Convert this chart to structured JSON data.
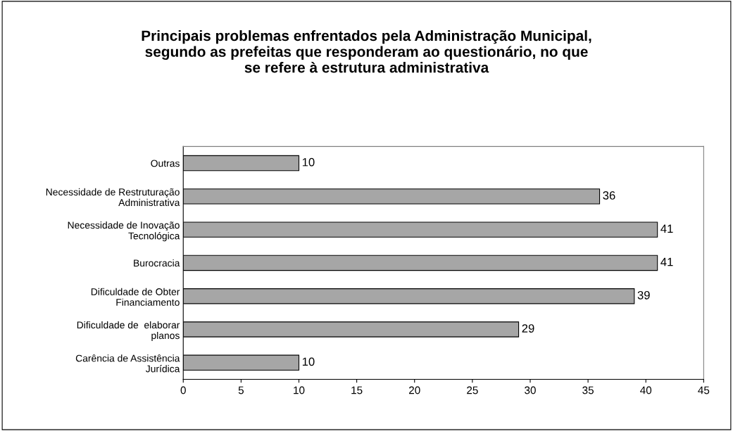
{
  "chart_data": {
    "type": "bar",
    "orientation": "horizontal",
    "title": "Principais problemas enfrentados pela Administração Municipal,\nsegundo as prefeitas que responderam ao questionário, no que\nse refere à estrutura administrativa",
    "categories": [
      "Outras",
      "Necessidade de Restruturação\nAdministrativa",
      "Necessidade de Inovação\nTecnológica",
      "Burocracia",
      "Dificuldade de Obter\nFinanciamento",
      "Dificuldade de  elaborar\nplanos",
      "Carência de Assistência\nJurídica"
    ],
    "values": [
      10,
      36,
      41,
      41,
      39,
      29,
      10
    ],
    "color": "#a6a6a6",
    "xlim": [
      0,
      45
    ],
    "xticks": [
      0,
      5,
      10,
      15,
      20,
      25,
      30,
      35,
      40,
      45
    ],
    "data_labels": true,
    "grid": false,
    "legend": false
  }
}
